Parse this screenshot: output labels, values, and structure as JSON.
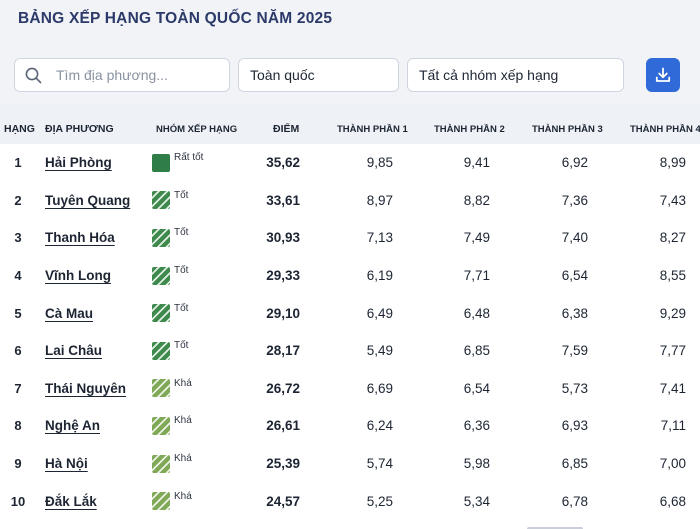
{
  "title": "BẢNG XẾP HẠNG TOÀN QUỐC NĂM 2025",
  "filters": {
    "search_placeholder": "Tìm địa phương...",
    "search_value": "",
    "scope": "Toàn quốc",
    "group": "Tất cả nhóm xếp hạng"
  },
  "colors": {
    "accent": "#2f6ad8",
    "very_good": "#2f7d47",
    "good": "#3d8a4c",
    "fair": "#7fa956"
  },
  "table": {
    "headers": {
      "rank": "HẠNG",
      "locality": "ĐỊA PHƯƠNG",
      "group": "NHÓM XẾP HẠNG",
      "score": "ĐIỂM",
      "c1": "THÀNH PHẦN 1",
      "c2": "THÀNH PHẦN 2",
      "c3": "THÀNH PHẦN 3",
      "c4": "THÀNH PHẦN 4"
    },
    "rows": [
      {
        "rank": "1",
        "name": "Hải Phòng",
        "group": "Rất tốt",
        "tier": "very_good",
        "score": "35,62",
        "c1": "9,85",
        "c2": "9,41",
        "c3": "6,92",
        "c4": "8,99"
      },
      {
        "rank": "2",
        "name": "Tuyên Quang",
        "group": "Tốt",
        "tier": "good",
        "score": "33,61",
        "c1": "8,97",
        "c2": "8,82",
        "c3": "7,36",
        "c4": "7,43"
      },
      {
        "rank": "3",
        "name": "Thanh Hóa",
        "group": "Tốt",
        "tier": "good",
        "score": "30,93",
        "c1": "7,13",
        "c2": "7,49",
        "c3": "7,40",
        "c4": "8,27"
      },
      {
        "rank": "4",
        "name": "Vĩnh Long",
        "group": "Tốt",
        "tier": "good",
        "score": "29,33",
        "c1": "6,19",
        "c2": "7,71",
        "c3": "6,54",
        "c4": "8,55"
      },
      {
        "rank": "5",
        "name": "Cà Mau",
        "group": "Tốt",
        "tier": "good",
        "score": "29,10",
        "c1": "6,49",
        "c2": "6,48",
        "c3": "6,38",
        "c4": "9,29"
      },
      {
        "rank": "6",
        "name": "Lai Châu",
        "group": "Tốt",
        "tier": "good",
        "score": "28,17",
        "c1": "5,49",
        "c2": "6,85",
        "c3": "7,59",
        "c4": "7,77"
      },
      {
        "rank": "7",
        "name": "Thái Nguyên",
        "group": "Khá",
        "tier": "fair",
        "score": "26,72",
        "c1": "6,69",
        "c2": "6,54",
        "c3": "5,73",
        "c4": "7,41"
      },
      {
        "rank": "8",
        "name": "Nghệ An",
        "group": "Khá",
        "tier": "fair",
        "score": "26,61",
        "c1": "6,24",
        "c2": "6,36",
        "c3": "6,93",
        "c4": "7,11"
      },
      {
        "rank": "9",
        "name": "Hà Nội",
        "group": "Khá",
        "tier": "fair",
        "score": "25,39",
        "c1": "5,74",
        "c2": "5,98",
        "c3": "6,85",
        "c4": "7,00"
      },
      {
        "rank": "10",
        "name": "Đắk Lắk",
        "group": "Khá",
        "tier": "fair",
        "score": "24,57",
        "c1": "5,25",
        "c2": "5,34",
        "c3": "6,78",
        "c4": "6,68"
      }
    ]
  }
}
